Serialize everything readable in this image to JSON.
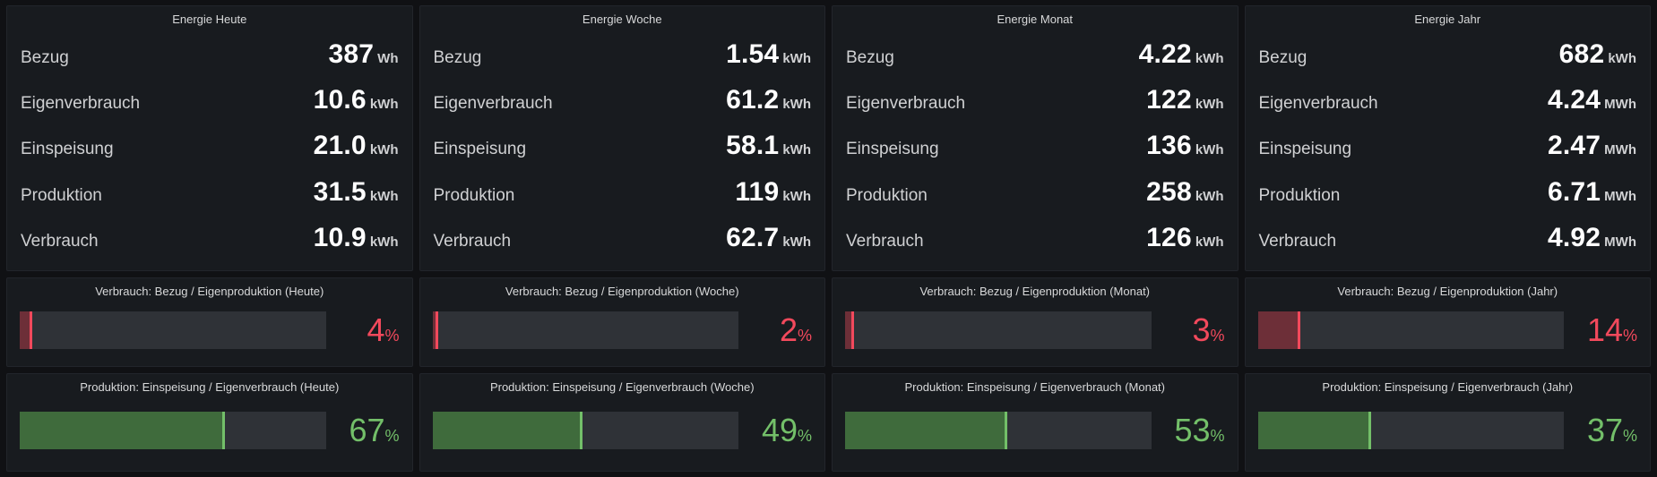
{
  "theme": {
    "background": "#101114",
    "panel_background": "#181b1f",
    "red_accent": "#f2495c",
    "green_accent": "#73bf69",
    "red_fill": "#6d2f38",
    "green_fill": "#3f6b3c"
  },
  "columns": [
    {
      "period": "Heute",
      "stats_title": "Energie Heute",
      "stats": [
        {
          "label": "Bezug",
          "value": "387",
          "unit": "Wh"
        },
        {
          "label": "Eigenverbrauch",
          "value": "10.6",
          "unit": "kWh"
        },
        {
          "label": "Einspeisung",
          "value": "21.0",
          "unit": "kWh"
        },
        {
          "label": "Produktion",
          "value": "31.5",
          "unit": "kWh"
        },
        {
          "label": "Verbrauch",
          "value": "10.9",
          "unit": "kWh"
        }
      ],
      "verbrauch_gauge": {
        "title": "Verbrauch: Bezug / Eigenproduktion (Heute)",
        "value": 4,
        "unit": "%"
      },
      "produktion_gauge": {
        "title": "Produktion: Einspeisung / Eigenverbrauch (Heute)",
        "value": 67,
        "unit": "%"
      }
    },
    {
      "period": "Woche",
      "stats_title": "Energie Woche",
      "stats": [
        {
          "label": "Bezug",
          "value": "1.54",
          "unit": "kWh"
        },
        {
          "label": "Eigenverbrauch",
          "value": "61.2",
          "unit": "kWh"
        },
        {
          "label": "Einspeisung",
          "value": "58.1",
          "unit": "kWh"
        },
        {
          "label": "Produktion",
          "value": "119",
          "unit": "kWh"
        },
        {
          "label": "Verbrauch",
          "value": "62.7",
          "unit": "kWh"
        }
      ],
      "verbrauch_gauge": {
        "title": "Verbrauch: Bezug / Eigenproduktion (Woche)",
        "value": 2,
        "unit": "%"
      },
      "produktion_gauge": {
        "title": "Produktion: Einspeisung / Eigenverbrauch (Woche)",
        "value": 49,
        "unit": "%"
      }
    },
    {
      "period": "Monat",
      "stats_title": "Energie Monat",
      "stats": [
        {
          "label": "Bezug",
          "value": "4.22",
          "unit": "kWh"
        },
        {
          "label": "Eigenverbrauch",
          "value": "122",
          "unit": "kWh"
        },
        {
          "label": "Einspeisung",
          "value": "136",
          "unit": "kWh"
        },
        {
          "label": "Produktion",
          "value": "258",
          "unit": "kWh"
        },
        {
          "label": "Verbrauch",
          "value": "126",
          "unit": "kWh"
        }
      ],
      "verbrauch_gauge": {
        "title": "Verbrauch: Bezug / Eigenproduktion (Monat)",
        "value": 3,
        "unit": "%"
      },
      "produktion_gauge": {
        "title": "Produktion: Einspeisung / Eigenverbrauch (Monat)",
        "value": 53,
        "unit": "%"
      }
    },
    {
      "period": "Jahr",
      "stats_title": "Energie Jahr",
      "stats": [
        {
          "label": "Bezug",
          "value": "682",
          "unit": "kWh"
        },
        {
          "label": "Eigenverbrauch",
          "value": "4.24",
          "unit": "MWh"
        },
        {
          "label": "Einspeisung",
          "value": "2.47",
          "unit": "MWh"
        },
        {
          "label": "Produktion",
          "value": "6.71",
          "unit": "MWh"
        },
        {
          "label": "Verbrauch",
          "value": "4.92",
          "unit": "MWh"
        }
      ],
      "verbrauch_gauge": {
        "title": "Verbrauch: Bezug / Eigenproduktion (Jahr)",
        "value": 14,
        "unit": "%"
      },
      "produktion_gauge": {
        "title": "Produktion: Einspeisung / Eigenverbrauch (Jahr)",
        "value": 37,
        "unit": "%"
      }
    }
  ]
}
